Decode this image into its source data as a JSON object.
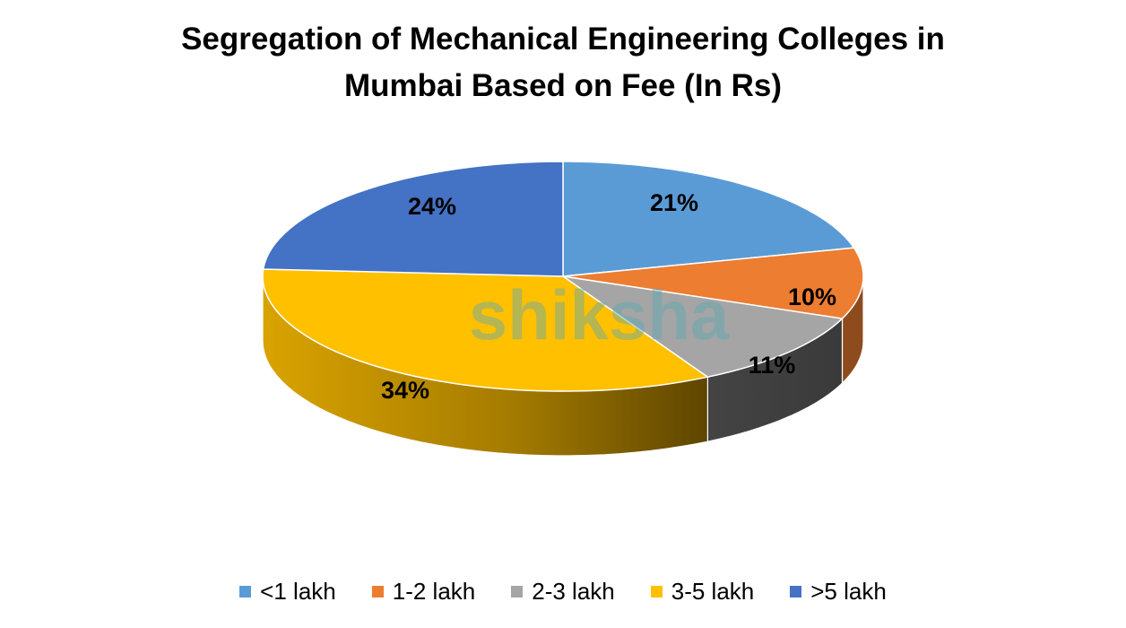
{
  "chart_data": {
    "type": "pie",
    "title": "Segregation of Mechanical Engineering Colleges in Mumbai Based on Fee (In Rs)",
    "title_lines": [
      "Segregation of Mechanical Engineering Colleges in",
      "Mumbai Based on Fee (In Rs)"
    ],
    "categories": [
      "<1 lakh",
      "1-2 lakh",
      "2-3 lakh",
      "3-5 lakh",
      ">5 lakh"
    ],
    "values": [
      21,
      10,
      11,
      34,
      24
    ],
    "labels": [
      "21%",
      "10%",
      "11%",
      "34%",
      "24%"
    ],
    "colors": [
      "#5B9BD5",
      "#ED7D31",
      "#A5A5A5",
      "#FFC000",
      "#4472C4"
    ],
    "legend_position": "bottom",
    "style": "3d-pie"
  },
  "watermark": {
    "text": "shiksha"
  }
}
